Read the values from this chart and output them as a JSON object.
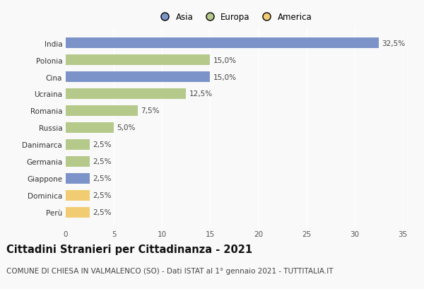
{
  "countries": [
    "India",
    "Polonia",
    "Cina",
    "Ucraina",
    "Romania",
    "Russia",
    "Danimarca",
    "Germania",
    "Giappone",
    "Dominica",
    "Perù"
  ],
  "values": [
    32.5,
    15.0,
    15.0,
    12.5,
    7.5,
    5.0,
    2.5,
    2.5,
    2.5,
    2.5,
    2.5
  ],
  "continents": [
    "Asia",
    "Europa",
    "Asia",
    "Europa",
    "Europa",
    "Europa",
    "Europa",
    "Europa",
    "Asia",
    "America",
    "America"
  ],
  "colors": {
    "Asia": "#7b93c8",
    "Europa": "#b5c98a",
    "America": "#f2cc72"
  },
  "legend_order": [
    "Asia",
    "Europa",
    "America"
  ],
  "title": "Cittadini Stranieri per Cittadinanza - 2021",
  "subtitle": "COMUNE DI CHIESA IN VALMALENCO (SO) - Dati ISTAT al 1° gennaio 2021 - TUTTITALIA.IT",
  "xlim": [
    0,
    35
  ],
  "xticks": [
    0,
    5,
    10,
    15,
    20,
    25,
    30,
    35
  ],
  "background_color": "#f9f9f9",
  "grid_color": "#ffffff",
  "bar_height": 0.65,
  "title_fontsize": 10.5,
  "subtitle_fontsize": 7.5,
  "label_fontsize": 7.5,
  "legend_fontsize": 8.5,
  "tick_fontsize": 7.5
}
